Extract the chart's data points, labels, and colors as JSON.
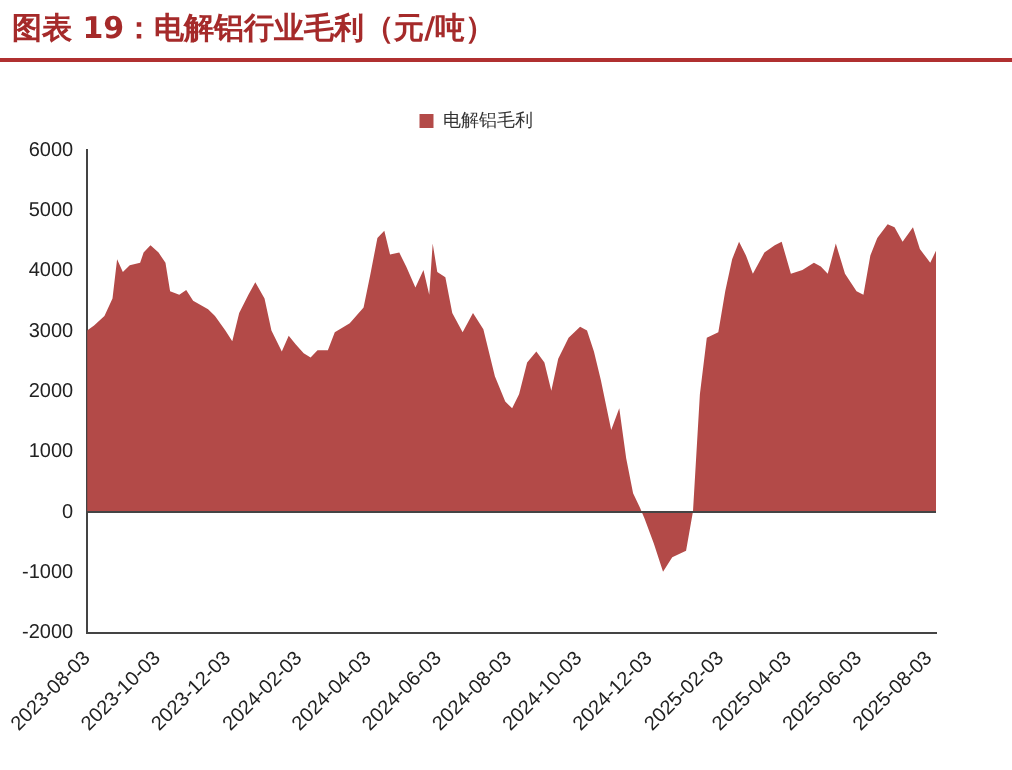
{
  "chart_data": {
    "type": "area",
    "title": "图表 19：电解铝行业毛利（元/吨）",
    "x": [
      "2023-08-03",
      "2023-08-09",
      "2023-08-18",
      "2023-08-25",
      "2023-08-29",
      "2023-09-03",
      "2023-09-09",
      "2023-09-18",
      "2023-09-21",
      "2023-09-27",
      "2023-10-04",
      "2023-10-10",
      "2023-10-14",
      "2023-10-22",
      "2023-10-28",
      "2023-11-03",
      "2023-11-16",
      "2023-11-22",
      "2023-12-01",
      "2023-12-07",
      "2023-12-13",
      "2023-12-21",
      "2023-12-27",
      "2024-01-04",
      "2024-01-10",
      "2024-01-19",
      "2024-01-25",
      "2024-01-31",
      "2024-02-07",
      "2024-02-13",
      "2024-02-19",
      "2024-02-28",
      "2024-03-05",
      "2024-03-18",
      "2024-03-30",
      "2024-04-05",
      "2024-04-11",
      "2024-04-17",
      "2024-04-22",
      "2024-04-30",
      "2024-05-06",
      "2024-05-14",
      "2024-05-21",
      "2024-05-26",
      "2024-05-29",
      "2024-06-02",
      "2024-06-09",
      "2024-06-15",
      "2024-06-24",
      "2024-07-03",
      "2024-07-12",
      "2024-07-22",
      "2024-07-31",
      "2024-08-06",
      "2024-08-12",
      "2024-08-19",
      "2024-08-27",
      "2024-09-03",
      "2024-09-09",
      "2024-09-15",
      "2024-09-24",
      "2024-10-04",
      "2024-10-10",
      "2024-10-16",
      "2024-10-22",
      "2024-10-31",
      "2024-11-07",
      "2024-11-13",
      "2024-11-19",
      "2024-11-25",
      "2024-11-29",
      "2024-12-07",
      "2024-12-15",
      "2024-12-23",
      "2025-01-04",
      "2025-01-10",
      "2025-01-16",
      "2025-01-22",
      "2025-02-01",
      "2025-02-07",
      "2025-02-13",
      "2025-02-19",
      "2025-02-25",
      "2025-03-03",
      "2025-03-13",
      "2025-03-22",
      "2025-03-28",
      "2025-04-05",
      "2025-04-15",
      "2025-04-25",
      "2025-05-01",
      "2025-05-07",
      "2025-05-14",
      "2025-05-22",
      "2025-06-01",
      "2025-06-07",
      "2025-06-13",
      "2025-06-19",
      "2025-06-28",
      "2025-07-04",
      "2025-07-11",
      "2025-07-20",
      "2025-07-26",
      "2025-08-04",
      "2025-08-09"
    ],
    "series": [
      {
        "name": "电解铝毛利",
        "color": "#b34a48",
        "values": [
          3010,
          3090,
          3250,
          3540,
          4190,
          3980,
          4090,
          4130,
          4300,
          4420,
          4300,
          4130,
          3660,
          3600,
          3680,
          3500,
          3360,
          3250,
          3010,
          2830,
          3300,
          3600,
          3810,
          3540,
          3010,
          2660,
          2920,
          2780,
          2630,
          2560,
          2680,
          2680,
          2980,
          3130,
          3390,
          3950,
          4540,
          4660,
          4270,
          4300,
          4070,
          3720,
          4010,
          3600,
          4450,
          3980,
          3890,
          3300,
          2980,
          3300,
          3030,
          2250,
          1830,
          1720,
          1950,
          2480,
          2660,
          2480,
          2010,
          2540,
          2890,
          3070,
          3010,
          2660,
          2190,
          1360,
          1720,
          890,
          310,
          70,
          -110,
          -520,
          -990,
          -750,
          -640,
          10,
          1950,
          2890,
          2980,
          3660,
          4190,
          4480,
          4250,
          3950,
          4300,
          4420,
          4480,
          3950,
          4010,
          4130,
          4070,
          3950,
          4450,
          3950,
          3660,
          3600,
          4250,
          4540,
          4770,
          4720,
          4480,
          4720,
          4360,
          4130,
          4330
        ]
      }
    ],
    "xlim": [
      "2023-08-03",
      "2025-08-09"
    ],
    "xticks": [
      "2023-08-03",
      "2023-10-03",
      "2023-12-03",
      "2024-02-03",
      "2024-04-03",
      "2024-06-03",
      "2024-08-03",
      "2024-10-03",
      "2024-12-03",
      "2025-02-03",
      "2025-04-03",
      "2025-06-03",
      "2025-08-03"
    ],
    "ylim": [
      -2000,
      6000
    ],
    "yticks": [
      -2000,
      -1000,
      0,
      1000,
      2000,
      3000,
      4000,
      5000,
      6000
    ],
    "ref_lines": [
      {
        "axis": "y",
        "value": 0,
        "color": "#444444"
      }
    ],
    "grid": false,
    "legend": "top"
  }
}
